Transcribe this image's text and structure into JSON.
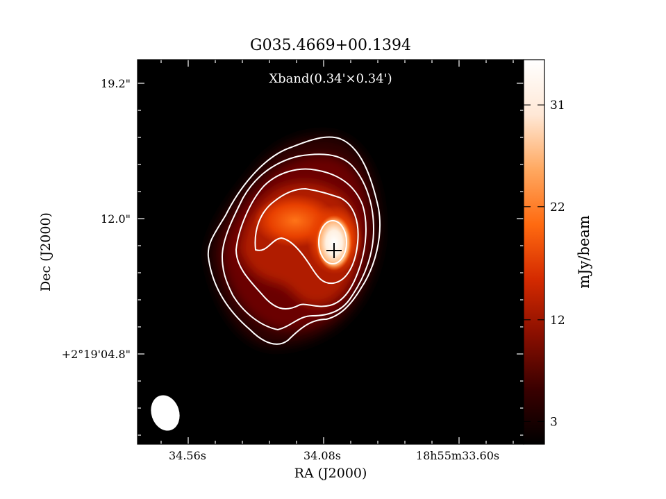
{
  "title": "G035.4669+00.1394",
  "colors": {
    "cmap": [
      "#000000",
      "#3a0000",
      "#8a0f00",
      "#d42a00",
      "#ff6a10",
      "#ffa860",
      "#ffe8d6",
      "#ffffff"
    ],
    "contour": "#ffffff",
    "frame": "#000000"
  },
  "chart_data": {
    "type": "heatmap",
    "title": "G035.4669+00.1394",
    "annotation": "Xband(0.34'×0.34')",
    "xlabel": "RA (J2000)",
    "ylabel": "Dec (J2000)",
    "x_ticks": [
      "34.56s",
      "34.08s",
      "18h55m33.60s"
    ],
    "y_ticks": [
      "19.2\"",
      "12.0\"",
      "+2°19'04.8\""
    ],
    "colorbar": {
      "label": "mJy/beam",
      "range": [
        1,
        35
      ],
      "ticks": [
        31,
        22,
        12,
        3
      ],
      "tick_labels": [
        "31",
        "22",
        "12",
        "3"
      ]
    },
    "peak_value": 33,
    "peak_marker": "+",
    "contour_count": 5,
    "beam": "ellipse, lower-left"
  }
}
